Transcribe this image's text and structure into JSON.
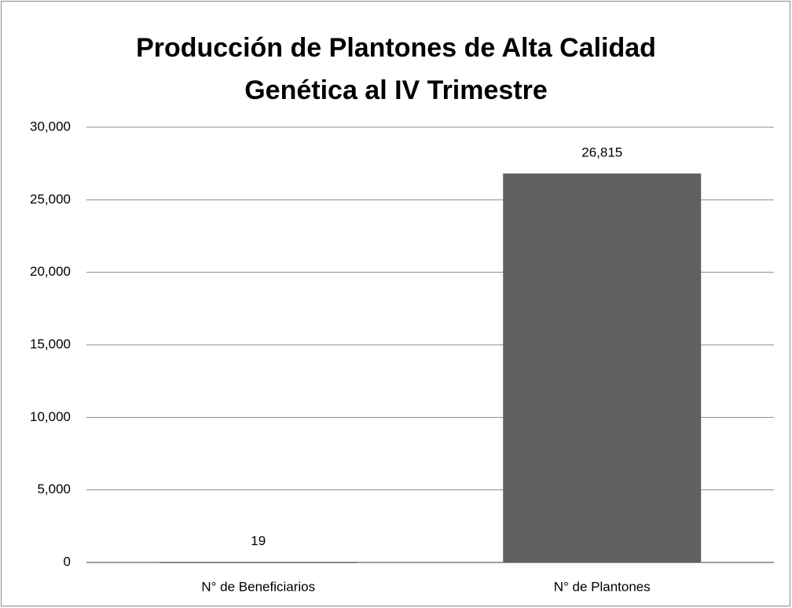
{
  "chart_data": {
    "type": "bar",
    "title": "Producción de Plantones de Alta Calidad Genética al IV Trimestre",
    "categories": [
      "N° de Beneficiarios",
      "N° de Plantones"
    ],
    "values": [
      19,
      26815
    ],
    "value_labels": [
      "19",
      "26,815"
    ],
    "color": "#606060",
    "ylim": [
      0,
      30000
    ],
    "yticks": [
      0,
      {
        "value": 5000,
        "label": "5,000"
      },
      {
        "value": 10000,
        "label": "10,000"
      },
      {
        "value": 15000,
        "label": "15,000"
      },
      {
        "value": 20000,
        "label": "20,000"
      },
      {
        "value": 25000,
        "label": "25,000"
      },
      {
        "value": 30000,
        "label": "30,000"
      }
    ],
    "grid": true
  }
}
